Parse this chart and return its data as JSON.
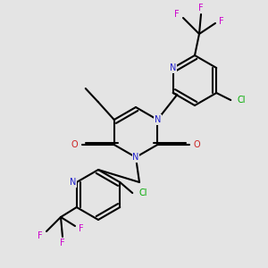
{
  "bg_color": "#e4e4e4",
  "bond_color": "#000000",
  "bond_width": 1.5,
  "dbo": 0.012,
  "atom_colors": {
    "N": "#2020cc",
    "O": "#cc2020",
    "Cl": "#00aa00",
    "F": "#cc00cc",
    "C": "#000000"
  },
  "fs": 7.0
}
